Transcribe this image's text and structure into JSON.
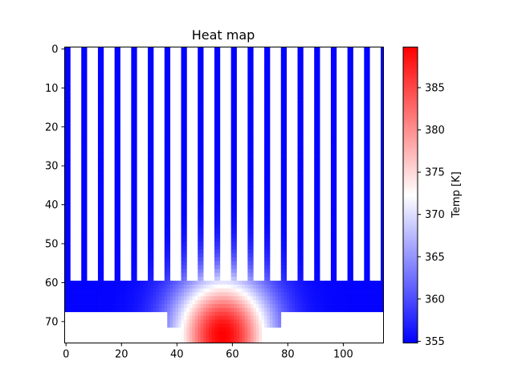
{
  "chart_data": {
    "type": "heatmap",
    "title": "Heat map",
    "x_ticks": [
      0,
      20,
      40,
      60,
      80,
      100
    ],
    "y_ticks": [
      0,
      10,
      20,
      30,
      40,
      50,
      60,
      70
    ],
    "xlim": [
      -0.5,
      114.5
    ],
    "ylim": [
      75.5,
      -0.5
    ],
    "grid_size": {
      "cols": 115,
      "rows": 76
    },
    "colorbar": {
      "label": "Temp [K]",
      "min": 354.8,
      "max": 389.8,
      "ticks": [
        355,
        360,
        365,
        370,
        375,
        380,
        385
      ],
      "colormap": "bwr",
      "colors": [
        "#0000ff",
        "#ffffff",
        "#ff0000"
      ]
    },
    "structure": {
      "fins": {
        "rows": [
          0,
          59
        ],
        "period": 6,
        "fin_width": 2,
        "first_col": 0,
        "temp": 355
      },
      "base_plate": {
        "rows": [
          60,
          67
        ],
        "cols": [
          0,
          114
        ]
      },
      "pedestal": {
        "rows": [
          68,
          71
        ],
        "cols": [
          37,
          77
        ]
      },
      "heat_source": {
        "rows": [
          72,
          75
        ],
        "cols": [
          42,
          70
        ],
        "center_col": 56.5,
        "peak_temp": 389.8
      },
      "background": "white"
    }
  }
}
